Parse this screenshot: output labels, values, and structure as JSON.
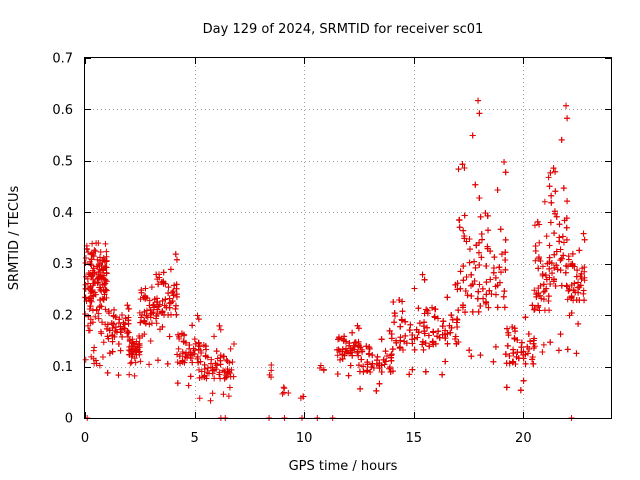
{
  "chart_data": {
    "type": "scatter",
    "title": "Day 129 of 2024, SRMTID for receiver sc01",
    "xlabel": "GPS time / hours",
    "ylabel": "SRMTID / TECUs",
    "xlim": [
      0,
      24
    ],
    "ylim": [
      0,
      0.7
    ],
    "x_ticks": [
      0,
      5,
      10,
      15,
      20
    ],
    "x_tick_labels": [
      "0",
      "5",
      "10",
      "15",
      "20"
    ],
    "y_ticks": [
      0,
      0.1,
      0.2,
      0.3,
      0.4,
      0.5,
      0.6,
      0.7
    ],
    "y_tick_labels": [
      "0",
      "0.1",
      "0.2",
      "0.3",
      "0.4",
      "0.5",
      "0.6",
      "0.7"
    ],
    "grid": true,
    "marker": "+",
    "color": "#e00000",
    "series": [
      {
        "name": "sc01",
        "segments": [
          {
            "x0": 0.0,
            "x1": 1.0,
            "y_lo": 0.1,
            "y_hi": 0.34,
            "center": 0.27,
            "n": 170
          },
          {
            "x0": 1.0,
            "x1": 2.0,
            "y_lo": 0.08,
            "y_hi": 0.22,
            "center": 0.17,
            "n": 110
          },
          {
            "x0": 2.0,
            "x1": 2.5,
            "y_lo": 0.08,
            "y_hi": 0.16,
            "center": 0.13,
            "n": 50
          },
          {
            "x0": 2.5,
            "x1": 3.3,
            "y_lo": 0.1,
            "y_hi": 0.28,
            "center": 0.2,
            "n": 80
          },
          {
            "x0": 3.3,
            "x1": 4.2,
            "y_lo": 0.1,
            "y_hi": 0.32,
            "center": 0.22,
            "n": 100
          },
          {
            "x0": 4.2,
            "x1": 5.2,
            "y_lo": 0.06,
            "y_hi": 0.2,
            "center": 0.12,
            "n": 80
          },
          {
            "x0": 5.2,
            "x1": 6.2,
            "y_lo": 0.03,
            "y_hi": 0.18,
            "center": 0.09,
            "n": 70
          },
          {
            "x0": 6.3,
            "x1": 6.8,
            "y_lo": 0.04,
            "y_hi": 0.15,
            "center": 0.09,
            "n": 25
          },
          {
            "x0": 8.3,
            "x1": 8.5,
            "y_lo": 0.06,
            "y_hi": 0.13,
            "center": 0.08,
            "n": 4
          },
          {
            "x0": 9.0,
            "x1": 9.3,
            "y_lo": 0.03,
            "y_hi": 0.07,
            "center": 0.05,
            "n": 5
          },
          {
            "x0": 9.8,
            "x1": 10.0,
            "y_lo": 0.03,
            "y_hi": 0.05,
            "center": 0.04,
            "n": 3
          },
          {
            "x0": 10.7,
            "x1": 10.9,
            "y_lo": 0.08,
            "y_hi": 0.11,
            "center": 0.09,
            "n": 4
          },
          {
            "x0": 11.5,
            "x1": 12.5,
            "y_lo": 0.08,
            "y_hi": 0.18,
            "center": 0.13,
            "n": 90
          },
          {
            "x0": 12.5,
            "x1": 14.0,
            "y_lo": 0.05,
            "y_hi": 0.17,
            "center": 0.1,
            "n": 130
          },
          {
            "x0": 14.0,
            "x1": 15.5,
            "y_lo": 0.08,
            "y_hi": 0.28,
            "center": 0.15,
            "n": 130
          },
          {
            "x0": 15.5,
            "x1": 17.0,
            "y_lo": 0.08,
            "y_hi": 0.26,
            "center": 0.16,
            "n": 130
          },
          {
            "x0": 17.0,
            "x1": 18.0,
            "y_lo": 0.12,
            "y_hi": 0.62,
            "center": 0.25,
            "n": 110
          },
          {
            "x0": 18.0,
            "x1": 19.2,
            "y_lo": 0.1,
            "y_hi": 0.5,
            "center": 0.25,
            "n": 110
          },
          {
            "x0": 19.2,
            "x1": 20.5,
            "y_lo": 0.05,
            "y_hi": 0.22,
            "center": 0.12,
            "n": 120
          },
          {
            "x0": 20.5,
            "x1": 21.2,
            "y_lo": 0.12,
            "y_hi": 0.47,
            "center": 0.24,
            "n": 80
          },
          {
            "x0": 21.2,
            "x1": 22.0,
            "y_lo": 0.12,
            "y_hi": 0.61,
            "center": 0.3,
            "n": 100
          },
          {
            "x0": 22.0,
            "x1": 22.8,
            "y_lo": 0.12,
            "y_hi": 0.36,
            "center": 0.25,
            "n": 80
          }
        ],
        "zero_points": [
          0.1,
          6.2,
          6.4,
          8.4,
          9.1,
          9.9,
          10.6,
          11.3,
          22.2
        ]
      }
    ]
  }
}
